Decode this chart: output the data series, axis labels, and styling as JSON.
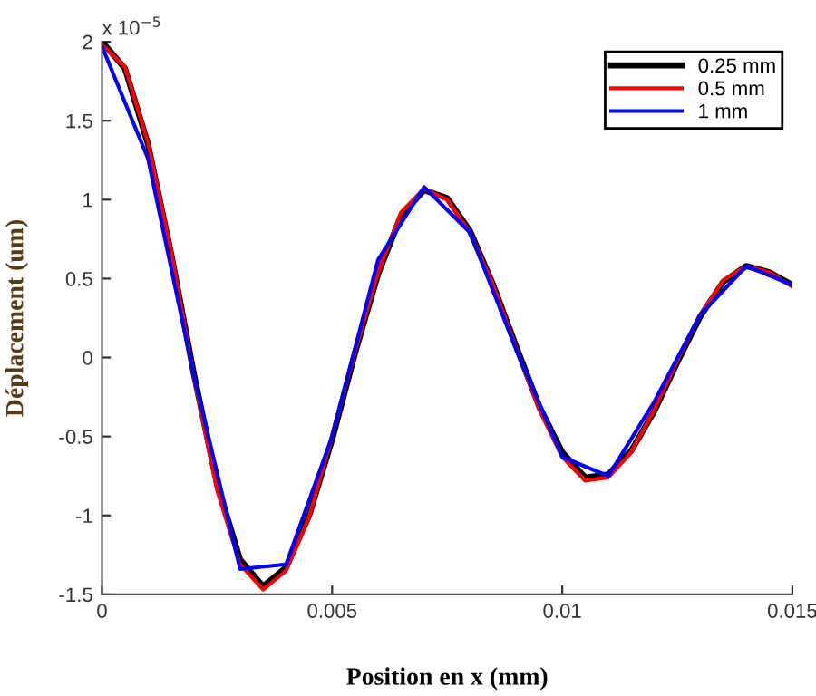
{
  "chart_data": {
    "type": "line",
    "xlabel": "Position en x (mm)",
    "ylabel": "Déplacement (um)",
    "annotations": [
      "x 10$^{−5}$"
    ],
    "xlim": [
      0,
      0.015
    ],
    "xticks": [
      0,
      0.005,
      0.01,
      0.015
    ],
    "ylim": [
      -1.5,
      2
    ],
    "yticks": [
      -1.5,
      -1,
      -0.5,
      0,
      0.5,
      1,
      1.5,
      2
    ],
    "grid": false,
    "legend": "top right",
    "line_style": "solid",
    "marker": "none",
    "series": [
      {
        "name": "0.25 mm",
        "color": "#000000",
        "x": [
          0,
          0.0005,
          0.001,
          0.0015,
          0.002,
          0.0025,
          0.003,
          0.0035,
          0.004,
          0.0045,
          0.005,
          0.0055,
          0.006,
          0.0065,
          0.007,
          0.0075,
          0.008,
          0.0085,
          0.009,
          0.0095,
          0.01,
          0.0105,
          0.011,
          0.0115,
          0.012,
          0.0125,
          0.013,
          0.0135,
          0.014,
          0.0145,
          0.015
        ],
        "values": [
          2.0,
          1.83,
          1.35,
          0.66,
          -0.11,
          -0.8,
          -1.28,
          -1.45,
          -1.33,
          -1.0,
          -0.52,
          0.03,
          0.53,
          0.9,
          1.06,
          1.01,
          0.8,
          0.46,
          0.07,
          -0.31,
          -0.6,
          -0.76,
          -0.74,
          -0.59,
          -0.34,
          -0.03,
          0.26,
          0.48,
          0.58,
          0.54,
          0.46
        ]
      },
      {
        "name": "0.5 mm",
        "color": "#ff0000",
        "x": [
          0,
          0.0005,
          0.001,
          0.0015,
          0.002,
          0.0025,
          0.003,
          0.0035,
          0.004,
          0.0045,
          0.005,
          0.0055,
          0.006,
          0.0065,
          0.007,
          0.0075,
          0.008,
          0.0085,
          0.009,
          0.0095,
          0.01,
          0.0105,
          0.011,
          0.0115,
          0.012,
          0.0125,
          0.013,
          0.0135,
          0.014,
          0.0145,
          0.015
        ],
        "values": [
          1.98,
          1.84,
          1.36,
          0.68,
          -0.13,
          -0.84,
          -1.31,
          -1.47,
          -1.35,
          -1.01,
          -0.5,
          0.04,
          0.54,
          0.92,
          1.07,
          1.0,
          0.79,
          0.46,
          0.06,
          -0.33,
          -0.63,
          -0.78,
          -0.76,
          -0.6,
          -0.33,
          -0.02,
          0.27,
          0.49,
          0.58,
          0.54,
          0.45
        ]
      },
      {
        "name": "1 mm",
        "color": "#0000ff",
        "x": [
          0,
          0.001,
          0.002,
          0.003,
          0.004,
          0.005,
          0.006,
          0.007,
          0.008,
          0.009,
          0.01,
          0.011,
          0.012,
          0.013,
          0.014,
          0.015
        ],
        "values": [
          1.97,
          1.26,
          -0.12,
          -1.34,
          -1.31,
          -0.5,
          0.62,
          1.08,
          0.79,
          0.05,
          -0.63,
          -0.75,
          -0.28,
          0.27,
          0.58,
          0.46
        ]
      }
    ]
  }
}
